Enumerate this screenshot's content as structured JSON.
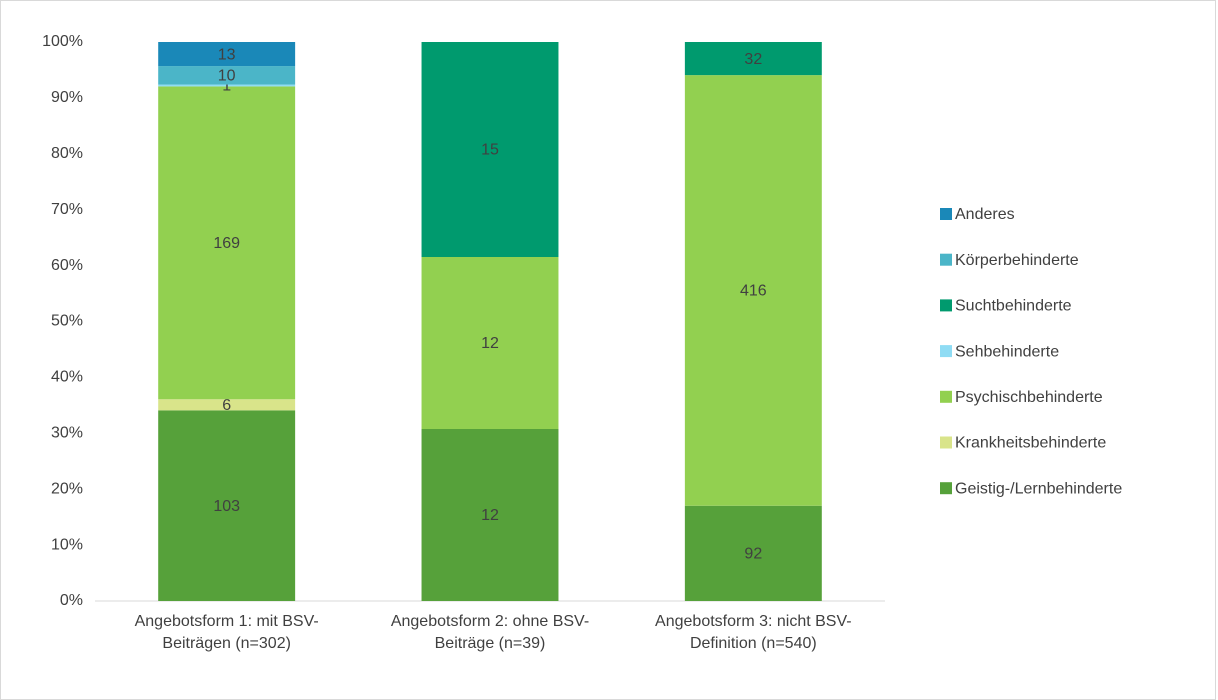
{
  "chart_data": {
    "type": "bar",
    "stacking": "percent",
    "categories": [
      "Angebotsform 1: mit BSV-Beiträgen (n=302)",
      "Angebotsform 2: ohne BSV-Beiträge (n=39)",
      "Angebotsform 3: nicht BSV-Definition (n=540)"
    ],
    "series": [
      {
        "name": "Geistig-/Lernbehinderte",
        "color": "#56a13a",
        "values": [
          103,
          12,
          92
        ]
      },
      {
        "name": "Krankheitsbehinderte",
        "color": "#d9e48a",
        "values": [
          6,
          null,
          null
        ]
      },
      {
        "name": "Psychischbehinderte",
        "color": "#92d050",
        "values": [
          169,
          12,
          416
        ]
      },
      {
        "name": "Sehbehinderte",
        "color": "#8fdcf4",
        "values": [
          1,
          null,
          null
        ]
      },
      {
        "name": "Suchtbehinderte",
        "color": "#009a6e",
        "values": [
          null,
          15,
          32
        ]
      },
      {
        "name": "Körperbehinderte",
        "color": "#4bb5c8",
        "values": [
          10,
          null,
          null
        ]
      },
      {
        "name": "Anderes",
        "color": "#1a88b8",
        "values": [
          13,
          null,
          null
        ]
      }
    ],
    "ylim": [
      0,
      100
    ],
    "yticks": [
      {
        "value": 0,
        "label": "0%"
      },
      {
        "value": 10,
        "label": "10%"
      },
      {
        "value": 20,
        "label": "20%"
      },
      {
        "value": 30,
        "label": "30%"
      },
      {
        "value": 40,
        "label": "40%"
      },
      {
        "value": 50,
        "label": "50%"
      },
      {
        "value": 60,
        "label": "60%"
      },
      {
        "value": 70,
        "label": "70%"
      },
      {
        "value": 80,
        "label": "80%"
      },
      {
        "value": 90,
        "label": "90%"
      },
      {
        "value": 100,
        "label": "100%"
      }
    ],
    "legend": "right"
  }
}
